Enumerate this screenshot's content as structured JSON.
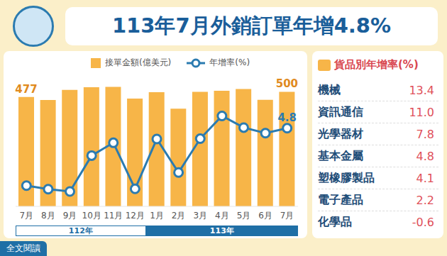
{
  "title": "113年7月外銷訂單年增4.8%",
  "footer": "全文閱讀",
  "chart_data": [
    {
      "type": "bar",
      "categories": [
        "7月",
        "8月",
        "9月",
        "10月",
        "11月",
        "12月",
        "1月",
        "2月",
        "3月",
        "4月",
        "5月",
        "6月",
        "7月"
      ],
      "x_groups": [
        {
          "label": "112年",
          "count": 6
        },
        {
          "label": "113年",
          "count": 7
        }
      ],
      "series": [
        {
          "name": "接單金額(億美元)",
          "type": "bar",
          "color": "#F7B548",
          "axis": "y",
          "values": [
            477,
            464,
            508,
            520,
            521,
            470,
            498,
            426,
            500,
            504,
            512,
            465,
            500
          ],
          "value_labels": [
            "477",
            null,
            null,
            null,
            null,
            null,
            null,
            null,
            null,
            null,
            null,
            null,
            "500"
          ]
        },
        {
          "name": "年增率(%)",
          "type": "line",
          "color": "#2B7BB0",
          "marker": "circle",
          "axis": "y2",
          "values": [
            -14.9,
            -16.1,
            -16.9,
            -4.6,
            -0.2,
            -16.0,
            1.1,
            -10.4,
            1.2,
            9.0,
            5.0,
            3.1,
            4.8
          ],
          "value_labels": [
            null,
            null,
            null,
            null,
            null,
            null,
            null,
            null,
            null,
            null,
            null,
            null,
            "4.8"
          ]
        }
      ],
      "ylim": [
        0,
        560
      ],
      "y2lim": [
        -22,
        22
      ],
      "tick_labels": "x",
      "legend": "top",
      "grid": false
    },
    {
      "type": "table",
      "title": "貨品別年增率(%)",
      "categories": [
        "機械",
        "資訊通信",
        "光學器材",
        "基本金屬",
        "塑橡膠製品",
        "電子產品",
        "化學品"
      ],
      "values": [
        13.4,
        11.0,
        7.8,
        4.8,
        4.1,
        2.2,
        -0.6
      ],
      "value_labels": [
        "13.4",
        "11.0",
        "7.8",
        "4.8",
        "4.1",
        "2.2",
        "-0.6"
      ]
    }
  ]
}
